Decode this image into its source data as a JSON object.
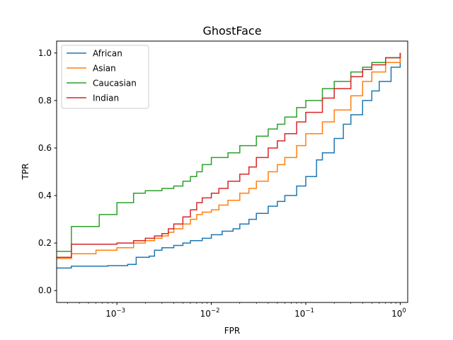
{
  "chart_data": {
    "type": "line",
    "title": "GhostFace",
    "xlabel": "FPR",
    "ylabel": "TPR",
    "xscale": "log",
    "xlim": [
      0.00023,
      1.2
    ],
    "ylim": [
      -0.05,
      1.05
    ],
    "x_ticks": [
      {
        "value": 0.001,
        "base": "10",
        "exp": "−3"
      },
      {
        "value": 0.01,
        "base": "10",
        "exp": "−2"
      },
      {
        "value": 0.1,
        "base": "10",
        "exp": "−1"
      },
      {
        "value": 1,
        "base": "10",
        "exp": "0"
      }
    ],
    "y_ticks": [
      "0.0",
      "0.2",
      "0.4",
      "0.6",
      "0.8",
      "1.0"
    ],
    "grid": false,
    "legend_position": "upper-left",
    "series": [
      {
        "name": "African",
        "color": "#1f77b4",
        "x": [
          0.00023,
          0.00033,
          0.0008,
          0.0013,
          0.0016,
          0.0022,
          0.0025,
          0.003,
          0.004,
          0.005,
          0.006,
          0.008,
          0.01,
          0.013,
          0.017,
          0.02,
          0.025,
          0.03,
          0.04,
          0.05,
          0.06,
          0.08,
          0.1,
          0.13,
          0.15,
          0.2,
          0.25,
          0.3,
          0.4,
          0.5,
          0.6,
          0.8,
          1.0
        ],
        "y": [
          0.095,
          0.103,
          0.105,
          0.11,
          0.14,
          0.145,
          0.17,
          0.18,
          0.19,
          0.2,
          0.21,
          0.22,
          0.235,
          0.25,
          0.26,
          0.28,
          0.3,
          0.325,
          0.355,
          0.375,
          0.4,
          0.44,
          0.48,
          0.55,
          0.58,
          0.64,
          0.7,
          0.74,
          0.8,
          0.84,
          0.88,
          0.94,
          1.0
        ]
      },
      {
        "name": "Asian",
        "color": "#ff7f0e",
        "x": [
          0.00023,
          0.00033,
          0.0006,
          0.001,
          0.0015,
          0.002,
          0.0025,
          0.003,
          0.0035,
          0.004,
          0.005,
          0.006,
          0.007,
          0.008,
          0.01,
          0.012,
          0.015,
          0.02,
          0.025,
          0.03,
          0.04,
          0.05,
          0.06,
          0.08,
          0.1,
          0.15,
          0.2,
          0.3,
          0.4,
          0.5,
          0.7,
          1.0
        ],
        "y": [
          0.135,
          0.155,
          0.17,
          0.18,
          0.2,
          0.21,
          0.22,
          0.23,
          0.245,
          0.26,
          0.28,
          0.3,
          0.32,
          0.33,
          0.34,
          0.36,
          0.38,
          0.41,
          0.43,
          0.46,
          0.5,
          0.53,
          0.56,
          0.61,
          0.66,
          0.71,
          0.76,
          0.82,
          0.88,
          0.92,
          0.96,
          1.0
        ]
      },
      {
        "name": "Caucasian",
        "color": "#2ca02c",
        "x": [
          0.00023,
          0.00033,
          0.00065,
          0.001,
          0.0015,
          0.002,
          0.003,
          0.004,
          0.005,
          0.006,
          0.007,
          0.008,
          0.01,
          0.015,
          0.02,
          0.03,
          0.04,
          0.05,
          0.06,
          0.08,
          0.1,
          0.15,
          0.2,
          0.3,
          0.4,
          0.5,
          0.7,
          1.0
        ],
        "y": [
          0.165,
          0.27,
          0.32,
          0.37,
          0.41,
          0.42,
          0.43,
          0.44,
          0.46,
          0.48,
          0.5,
          0.53,
          0.56,
          0.58,
          0.61,
          0.65,
          0.68,
          0.7,
          0.73,
          0.77,
          0.8,
          0.85,
          0.88,
          0.92,
          0.94,
          0.96,
          0.98,
          1.0
        ]
      },
      {
        "name": "Indian",
        "color": "#d62728",
        "x": [
          0.00023,
          0.00033,
          0.001,
          0.0015,
          0.002,
          0.0025,
          0.003,
          0.0035,
          0.004,
          0.005,
          0.006,
          0.007,
          0.008,
          0.01,
          0.012,
          0.015,
          0.02,
          0.025,
          0.03,
          0.04,
          0.05,
          0.06,
          0.08,
          0.1,
          0.15,
          0.2,
          0.3,
          0.4,
          0.5,
          0.7,
          1.0
        ],
        "y": [
          0.14,
          0.195,
          0.2,
          0.21,
          0.22,
          0.23,
          0.24,
          0.26,
          0.28,
          0.31,
          0.34,
          0.37,
          0.39,
          0.41,
          0.43,
          0.46,
          0.49,
          0.52,
          0.56,
          0.6,
          0.63,
          0.66,
          0.71,
          0.75,
          0.81,
          0.85,
          0.9,
          0.93,
          0.95,
          0.98,
          1.0
        ]
      }
    ]
  }
}
